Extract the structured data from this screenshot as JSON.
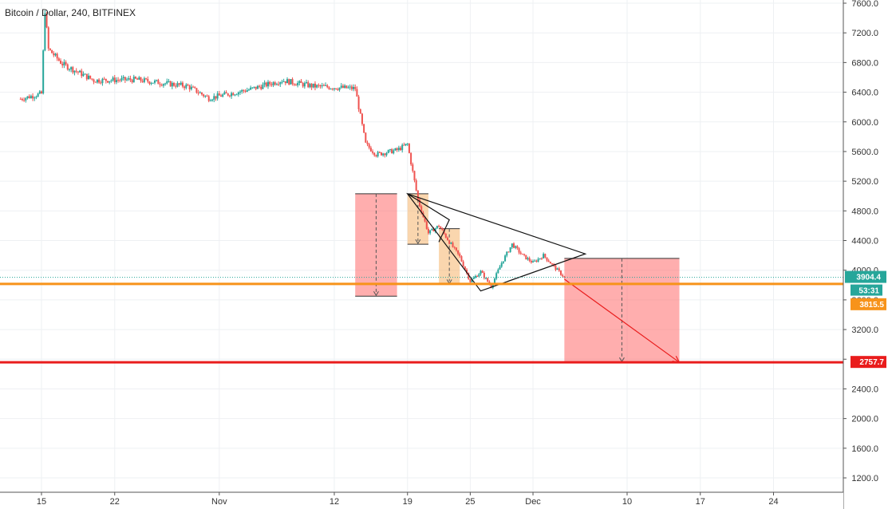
{
  "header": {
    "title": "Bitcoin / Dollar, 240, BITFINEX"
  },
  "chart_data": {
    "type": "candlestick",
    "title": "Bitcoin / Dollar, 240, BITFINEX",
    "symbol": "Bitcoin / Dollar",
    "interval": "240",
    "exchange": "BITFINEX",
    "x_range_days": [
      -2,
      43
    ],
    "x_range_note": "day offsets from Oct 15 (15 = Oct 15); ticks shown below",
    "ylim": [
      1000,
      7700
    ],
    "grid": true,
    "y_ticks": [
      "7600.0",
      "7200.0",
      "6800.0",
      "6400.0",
      "6000.0",
      "5600.0",
      "5200.0",
      "4800.0",
      "4400.0",
      "4000.0",
      "3600.0",
      "3200.0",
      "2800.0",
      "2400.0",
      "2000.0",
      "1600.0",
      "1200.0"
    ],
    "y_tick_values": [
      7600,
      7200,
      6800,
      6400,
      6000,
      5600,
      5200,
      4800,
      4400,
      4000,
      3600,
      3200,
      2800,
      2400,
      2000,
      1600,
      1200
    ],
    "x_ticks": [
      {
        "label": "15",
        "date": "2018-10-15"
      },
      {
        "label": "22",
        "date": "2018-10-22"
      },
      {
        "label": "Nov",
        "date": "2018-11-01"
      },
      {
        "label": "12",
        "date": "2018-11-12"
      },
      {
        "label": "19",
        "date": "2018-11-19"
      },
      {
        "label": "25",
        "date": "2018-11-25"
      },
      {
        "label": "Dec",
        "date": "2018-12-01"
      },
      {
        "label": "10",
        "date": "2018-12-10"
      },
      {
        "label": "17",
        "date": "2018-12-17"
      },
      {
        "label": "24",
        "date": "2018-12-24"
      }
    ],
    "price_path": [
      {
        "date": "2018-10-13",
        "price": 6310
      },
      {
        "date": "2018-10-15",
        "price": 6380
      },
      {
        "date": "2018-10-15T08",
        "price": 7500
      },
      {
        "date": "2018-10-15T16",
        "price": 6980
      },
      {
        "date": "2018-10-17",
        "price": 6780
      },
      {
        "date": "2018-10-20",
        "price": 6560
      },
      {
        "date": "2018-10-24",
        "price": 6570
      },
      {
        "date": "2018-10-29",
        "price": 6480
      },
      {
        "date": "2018-10-31",
        "price": 6320
      },
      {
        "date": "2018-11-04",
        "price": 6440
      },
      {
        "date": "2018-11-07",
        "price": 6560
      },
      {
        "date": "2018-11-10",
        "price": 6480
      },
      {
        "date": "2018-11-14",
        "price": 6450
      },
      {
        "date": "2018-11-15",
        "price": 5700
      },
      {
        "date": "2018-11-16",
        "price": 5560
      },
      {
        "date": "2018-11-18",
        "price": 5620
      },
      {
        "date": "2018-11-19",
        "price": 5700
      },
      {
        "date": "2018-11-20",
        "price": 4950
      },
      {
        "date": "2018-11-21",
        "price": 4500
      },
      {
        "date": "2018-11-22",
        "price": 4600
      },
      {
        "date": "2018-11-23",
        "price": 4380
      },
      {
        "date": "2018-11-24",
        "price": 4180
      },
      {
        "date": "2018-11-25",
        "price": 3850
      },
      {
        "date": "2018-11-26",
        "price": 3980
      },
      {
        "date": "2018-11-27",
        "price": 3780
      },
      {
        "date": "2018-11-28",
        "price": 4100
      },
      {
        "date": "2018-11-29",
        "price": 4350
      },
      {
        "date": "2018-11-30",
        "price": 4200
      },
      {
        "date": "2018-12-01",
        "price": 4100
      },
      {
        "date": "2018-12-02",
        "price": 4200
      },
      {
        "date": "2018-12-03",
        "price": 4050
      },
      {
        "date": "2018-12-04",
        "price": 3904
      }
    ],
    "price_levels": [
      {
        "name": "last-price",
        "value": 3904.4,
        "label": "3904.4",
        "countdown": "53:31",
        "color": "#26a69a"
      },
      {
        "name": "support",
        "value": 3815.5,
        "label": "3815.5",
        "color": "#f7931a"
      },
      {
        "name": "target",
        "value": 2757.7,
        "label": "2757.7",
        "color": "#e91c1c"
      }
    ],
    "drawings": {
      "measure_boxes": [
        {
          "from": "2018-11-14",
          "to": "2018-11-18",
          "top": 5030,
          "bottom": 3650,
          "color": "#ff6b6b"
        },
        {
          "from": "2018-11-19",
          "to": "2018-11-21",
          "top": 5030,
          "bottom": 4350,
          "color": "#f5b56b"
        },
        {
          "from": "2018-11-22",
          "to": "2018-11-24",
          "top": 4560,
          "bottom": 3810,
          "color": "#f5b56b"
        },
        {
          "from": "2018-12-04",
          "to": "2018-12-15",
          "top": 4160,
          "bottom": 2757.7,
          "color": "#ff6b6b"
        }
      ],
      "triangle": [
        {
          "date": "2018-11-19",
          "price": 5030
        },
        {
          "date": "2018-12-06",
          "price": 4220
        },
        {
          "date": "2018-11-26",
          "price": 3720
        }
      ],
      "small_wedge": [
        {
          "date": "2018-11-19",
          "price": 5030
        },
        {
          "date": "2018-11-23",
          "price": 4680
        },
        {
          "date": "2018-11-22",
          "price": 4380
        }
      ],
      "projection_arrow": {
        "from": {
          "date": "2018-12-04",
          "price": 3880
        },
        "to": {
          "date": "2018-12-15",
          "price": 2757.7
        },
        "color": "#e91c1c"
      }
    }
  }
}
